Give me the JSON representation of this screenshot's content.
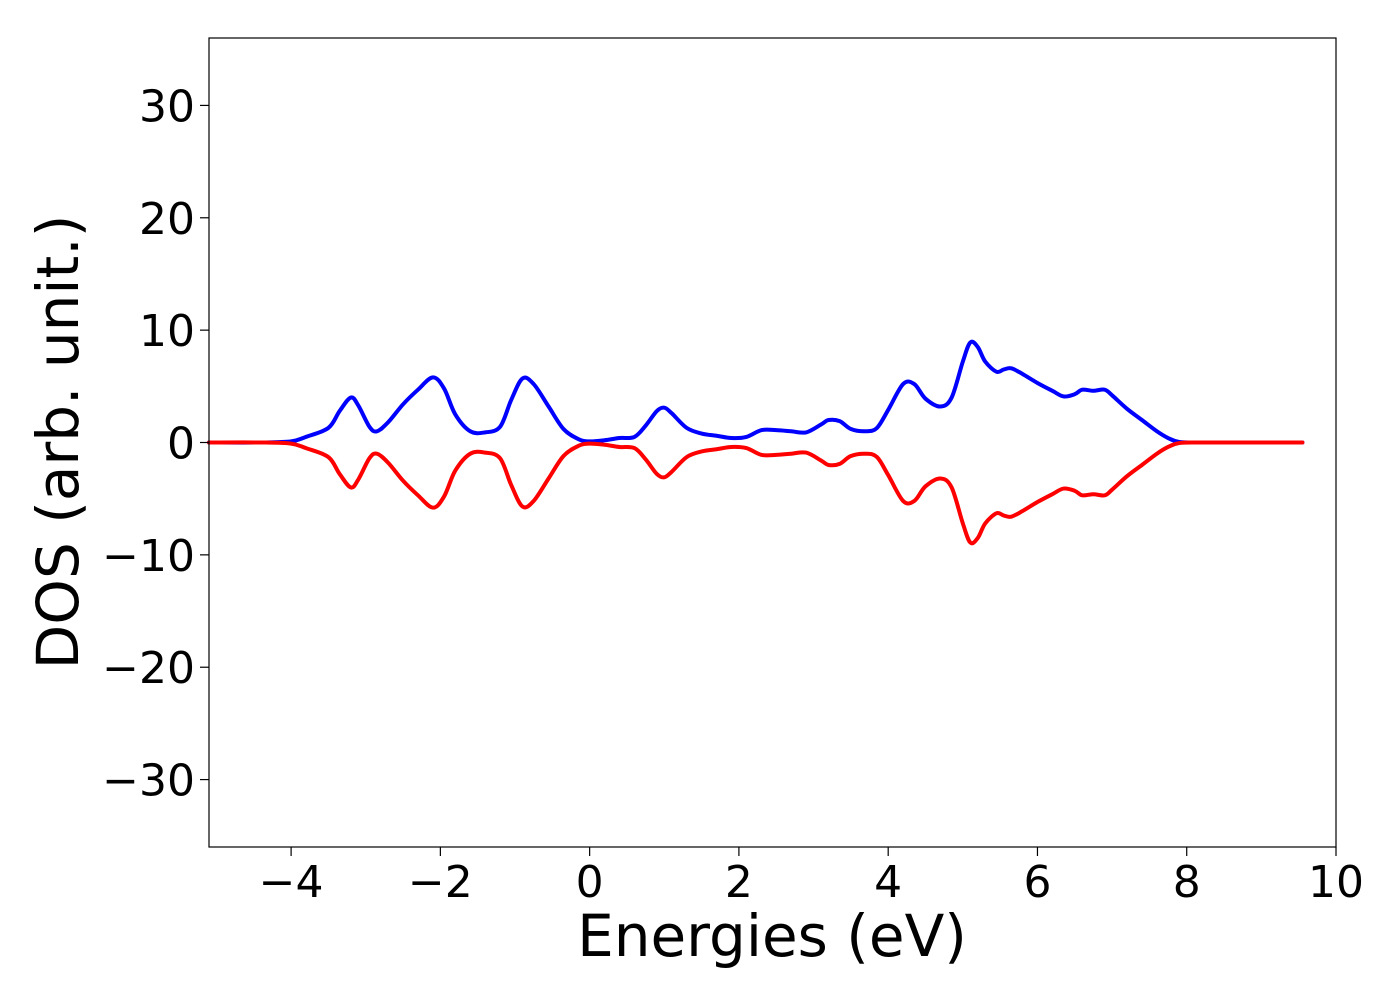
{
  "chart_data": {
    "type": "line",
    "title": "",
    "xlabel": "Energies (eV)",
    "ylabel": "DOS (arb. unit.)",
    "xlim": [
      -5.1,
      10
    ],
    "ylim": [
      -36,
      36
    ],
    "xticks": [
      -4,
      -2,
      0,
      2,
      4,
      6,
      8,
      10
    ],
    "xtick_labels": [
      "−4",
      "−2",
      "0",
      "2",
      "4",
      "6",
      "8",
      "10"
    ],
    "yticks": [
      30,
      20,
      10,
      0,
      -10,
      -20,
      -30
    ],
    "ytick_labels": [
      "30",
      "20",
      "10",
      "0",
      "−10",
      "−20",
      "−30"
    ],
    "grid": false,
    "legend": "none",
    "series": [
      {
        "color": "#0000ff",
        "x": [
          -5.1,
          -4.4,
          -4.0,
          -3.8,
          -3.5,
          -3.35,
          -3.2,
          -3.1,
          -2.95,
          -2.85,
          -2.7,
          -2.5,
          -2.3,
          -2.1,
          -1.95,
          -1.8,
          -1.6,
          -1.4,
          -1.2,
          -1.05,
          -0.9,
          -0.75,
          -0.55,
          -0.35,
          -0.15,
          0.0,
          0.2,
          0.4,
          0.6,
          0.75,
          0.9,
          1.0,
          1.1,
          1.3,
          1.5,
          1.7,
          1.9,
          2.1,
          2.3,
          2.5,
          2.7,
          2.9,
          3.1,
          3.2,
          3.35,
          3.5,
          3.7,
          3.85,
          4.0,
          4.2,
          4.35,
          4.5,
          4.7,
          4.85,
          5.0,
          5.1,
          5.2,
          5.3,
          5.45,
          5.55,
          5.65,
          5.8,
          6.0,
          6.2,
          6.35,
          6.5,
          6.6,
          6.75,
          6.9,
          7.0,
          7.2,
          7.4,
          7.6,
          7.75,
          7.9,
          8.2,
          9.0,
          9.55
        ],
        "y": [
          0,
          0,
          0.1,
          0.5,
          1.3,
          2.8,
          4.0,
          3.3,
          1.4,
          1.0,
          1.8,
          3.4,
          4.7,
          5.8,
          4.8,
          2.5,
          1.0,
          0.9,
          1.4,
          3.8,
          5.7,
          5.2,
          3.2,
          1.2,
          0.3,
          0.1,
          0.2,
          0.4,
          0.5,
          1.5,
          2.8,
          3.1,
          2.6,
          1.3,
          0.8,
          0.6,
          0.4,
          0.5,
          1.1,
          1.1,
          1.0,
          0.9,
          1.6,
          2.0,
          1.9,
          1.2,
          1.0,
          1.3,
          2.9,
          5.2,
          5.2,
          3.9,
          3.2,
          4.0,
          7.2,
          8.9,
          8.5,
          7.2,
          6.3,
          6.5,
          6.6,
          6.1,
          5.3,
          4.6,
          4.1,
          4.3,
          4.7,
          4.6,
          4.7,
          4.2,
          3.0,
          2.0,
          1.0,
          0.4,
          0.05,
          0,
          0,
          0
        ]
      },
      {
        "color": "#ff0000",
        "x": [
          -5.1,
          -4.4,
          -4.0,
          -3.8,
          -3.5,
          -3.35,
          -3.2,
          -3.1,
          -2.95,
          -2.85,
          -2.7,
          -2.5,
          -2.3,
          -2.1,
          -1.95,
          -1.8,
          -1.6,
          -1.4,
          -1.2,
          -1.05,
          -0.9,
          -0.75,
          -0.55,
          -0.35,
          -0.15,
          0.0,
          0.2,
          0.4,
          0.6,
          0.75,
          0.9,
          1.0,
          1.1,
          1.3,
          1.5,
          1.7,
          1.9,
          2.1,
          2.3,
          2.5,
          2.7,
          2.9,
          3.1,
          3.2,
          3.35,
          3.5,
          3.7,
          3.85,
          4.0,
          4.2,
          4.35,
          4.5,
          4.7,
          4.85,
          5.0,
          5.1,
          5.2,
          5.3,
          5.45,
          5.55,
          5.65,
          5.8,
          6.0,
          6.2,
          6.35,
          6.5,
          6.6,
          6.75,
          6.9,
          7.0,
          7.2,
          7.4,
          7.6,
          7.75,
          7.9,
          8.2,
          9.0,
          9.55
        ],
        "y": [
          0,
          0,
          -0.1,
          -0.5,
          -1.3,
          -2.8,
          -4.0,
          -3.3,
          -1.4,
          -1.0,
          -1.8,
          -3.4,
          -4.7,
          -5.8,
          -4.8,
          -2.5,
          -1.0,
          -0.9,
          -1.4,
          -3.8,
          -5.7,
          -5.2,
          -3.2,
          -1.2,
          -0.3,
          -0.1,
          -0.2,
          -0.4,
          -0.5,
          -1.5,
          -2.8,
          -3.1,
          -2.6,
          -1.3,
          -0.8,
          -0.6,
          -0.4,
          -0.5,
          -1.1,
          -1.1,
          -1.0,
          -0.9,
          -1.6,
          -2.0,
          -1.9,
          -1.2,
          -1.0,
          -1.3,
          -2.9,
          -5.2,
          -5.2,
          -3.9,
          -3.2,
          -4.0,
          -7.2,
          -8.9,
          -8.5,
          -7.2,
          -6.3,
          -6.5,
          -6.6,
          -6.1,
          -5.3,
          -4.6,
          -4.1,
          -4.3,
          -4.7,
          -4.6,
          -4.7,
          -4.2,
          -3.0,
          -2.0,
          -1.0,
          -0.4,
          -0.05,
          0,
          0,
          0
        ]
      }
    ]
  }
}
